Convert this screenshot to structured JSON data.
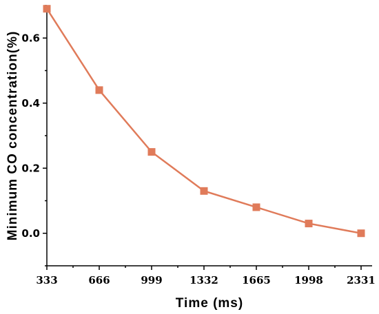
{
  "chart_data": {
    "type": "line",
    "title": "",
    "xlabel": "Time (ms)",
    "ylabel": "Minimum CO concentration(%)",
    "x": [
      333,
      666,
      999,
      1332,
      1665,
      1998,
      2331
    ],
    "x_tick_labels": [
      "333",
      "666",
      "999",
      "1332",
      "1665",
      "1998",
      "2331"
    ],
    "y_tick_labels": [
      "0.0",
      "0.2",
      "0.4",
      "0.6"
    ],
    "y_ticks": [
      0.0,
      0.2,
      0.4,
      0.6
    ],
    "xlim": [
      333,
      2331
    ],
    "ylim": [
      -0.1,
      0.7
    ],
    "grid": false,
    "series": [
      {
        "values": [
          0.69,
          0.44,
          0.25,
          0.13,
          0.08,
          0.03,
          0.0
        ],
        "color": "#e07b5a",
        "marker": "square"
      }
    ]
  }
}
